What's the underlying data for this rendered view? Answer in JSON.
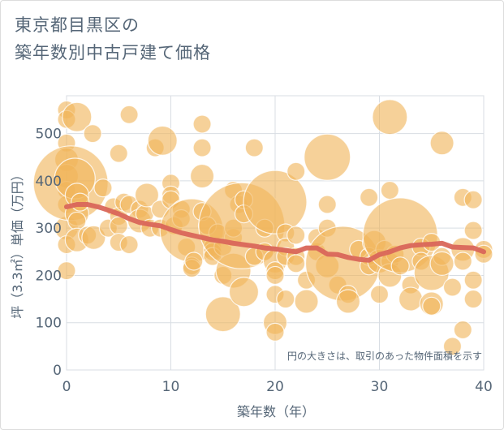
{
  "title_line1": "東京都目黒区の",
  "title_line2": "築年数別中古戸建て価格",
  "chart_data": {
    "type": "scatter",
    "xlabel": "築年数（年）",
    "ylabel": "坪（3.3㎡）単価（万円）",
    "xlim": [
      0,
      40
    ],
    "ylim": [
      0,
      580
    ],
    "xticks": [
      "0",
      "10",
      "20",
      "30",
      "40"
    ],
    "yticks": [
      "0",
      "100",
      "200",
      "300",
      "400",
      "500"
    ],
    "grid": true,
    "note": "円の大きさは、取引のあった物件面積を示す",
    "bubble_color": "#f1b55a",
    "trend_color": "#d9665a",
    "points": [
      {
        "x": 0,
        "y": 550,
        "s": 2
      },
      {
        "x": 0,
        "y": 530,
        "s": 2
      },
      {
        "x": 0,
        "y": 480,
        "s": 2
      },
      {
        "x": 0,
        "y": 445,
        "s": 3
      },
      {
        "x": 0,
        "y": 410,
        "s": 3
      },
      {
        "x": 0,
        "y": 380,
        "s": 2
      },
      {
        "x": 0,
        "y": 350,
        "s": 2
      },
      {
        "x": 0,
        "y": 300,
        "s": 3
      },
      {
        "x": 0,
        "y": 265,
        "s": 2
      },
      {
        "x": 0,
        "y": 210,
        "s": 2
      },
      {
        "x": 0.4,
        "y": 395,
        "s": 12
      },
      {
        "x": 0.8,
        "y": 405,
        "s": 6
      },
      {
        "x": 1,
        "y": 535,
        "s": 4
      },
      {
        "x": 1,
        "y": 370,
        "s": 3
      },
      {
        "x": 1,
        "y": 330,
        "s": 3
      },
      {
        "x": 1,
        "y": 315,
        "s": 2
      },
      {
        "x": 1,
        "y": 275,
        "s": 3
      },
      {
        "x": 1.3,
        "y": 355,
        "s": 2
      },
      {
        "x": 2,
        "y": 285,
        "s": 2
      },
      {
        "x": 2.5,
        "y": 500,
        "s": 2
      },
      {
        "x": 2.6,
        "y": 280,
        "s": 3
      },
      {
        "x": 3.5,
        "y": 385,
        "s": 2
      },
      {
        "x": 4,
        "y": 300,
        "s": 2
      },
      {
        "x": 4.5,
        "y": 345,
        "s": 2
      },
      {
        "x": 5,
        "y": 458,
        "s": 2
      },
      {
        "x": 5,
        "y": 325,
        "s": 2
      },
      {
        "x": 5,
        "y": 305,
        "s": 2
      },
      {
        "x": 5,
        "y": 270,
        "s": 2
      },
      {
        "x": 5.5,
        "y": 355,
        "s": 2
      },
      {
        "x": 6,
        "y": 540,
        "s": 2
      },
      {
        "x": 6,
        "y": 350,
        "s": 2
      },
      {
        "x": 6,
        "y": 265,
        "s": 2
      },
      {
        "x": 7,
        "y": 340,
        "s": 2
      },
      {
        "x": 7,
        "y": 315,
        "s": 3
      },
      {
        "x": 7.5,
        "y": 330,
        "s": 2
      },
      {
        "x": 7.7,
        "y": 370,
        "s": 3
      },
      {
        "x": 8,
        "y": 300,
        "s": 2
      },
      {
        "x": 8.5,
        "y": 470,
        "s": 2
      },
      {
        "x": 9,
        "y": 340,
        "s": 2
      },
      {
        "x": 9,
        "y": 300,
        "s": 2
      },
      {
        "x": 9.2,
        "y": 485,
        "s": 4
      },
      {
        "x": 10,
        "y": 395,
        "s": 2
      },
      {
        "x": 10,
        "y": 370,
        "s": 2
      },
      {
        "x": 10,
        "y": 360,
        "s": 2
      },
      {
        "x": 10.3,
        "y": 305,
        "s": 2
      },
      {
        "x": 11,
        "y": 340,
        "s": 2
      },
      {
        "x": 11,
        "y": 320,
        "s": 2
      },
      {
        "x": 11.5,
        "y": 260,
        "s": 2
      },
      {
        "x": 12,
        "y": 295,
        "s": 10
      },
      {
        "x": 12,
        "y": 220,
        "s": 2
      },
      {
        "x": 12,
        "y": 215,
        "s": 2
      },
      {
        "x": 12.2,
        "y": 230,
        "s": 2
      },
      {
        "x": 13,
        "y": 520,
        "s": 2
      },
      {
        "x": 13,
        "y": 470,
        "s": 2
      },
      {
        "x": 13,
        "y": 410,
        "s": 3
      },
      {
        "x": 13,
        "y": 335,
        "s": 2
      },
      {
        "x": 13.5,
        "y": 305,
        "s": 2
      },
      {
        "x": 14,
        "y": 260,
        "s": 2
      },
      {
        "x": 14,
        "y": 250,
        "s": 2
      },
      {
        "x": 14,
        "y": 240,
        "s": 2
      },
      {
        "x": 14.5,
        "y": 290,
        "s": 2
      },
      {
        "x": 15,
        "y": 118,
        "s": 5
      },
      {
        "x": 15,
        "y": 200,
        "s": 2
      },
      {
        "x": 15,
        "y": 260,
        "s": 2
      },
      {
        "x": 16,
        "y": 280,
        "s": 2
      },
      {
        "x": 16,
        "y": 300,
        "s": 2
      },
      {
        "x": 16,
        "y": 380,
        "s": 2
      },
      {
        "x": 16,
        "y": 210,
        "s": 5
      },
      {
        "x": 16.5,
        "y": 350,
        "s": 2
      },
      {
        "x": 16.8,
        "y": 305,
        "s": 14
      },
      {
        "x": 17,
        "y": 360,
        "s": 2
      },
      {
        "x": 17,
        "y": 330,
        "s": 2
      },
      {
        "x": 17,
        "y": 165,
        "s": 4
      },
      {
        "x": 18,
        "y": 470,
        "s": 2
      },
      {
        "x": 18,
        "y": 240,
        "s": 2
      },
      {
        "x": 19,
        "y": 300,
        "s": 2
      },
      {
        "x": 19,
        "y": 250,
        "s": 2
      },
      {
        "x": 20,
        "y": 355,
        "s": 10
      },
      {
        "x": 20,
        "y": 230,
        "s": 3
      },
      {
        "x": 20,
        "y": 210,
        "s": 2
      },
      {
        "x": 20,
        "y": 200,
        "s": 2
      },
      {
        "x": 20,
        "y": 160,
        "s": 2
      },
      {
        "x": 20,
        "y": 100,
        "s": 3
      },
      {
        "x": 20,
        "y": 80,
        "s": 2
      },
      {
        "x": 21,
        "y": 290,
        "s": 2
      },
      {
        "x": 21,
        "y": 260,
        "s": 2
      },
      {
        "x": 21,
        "y": 240,
        "s": 2
      },
      {
        "x": 21,
        "y": 150,
        "s": 2
      },
      {
        "x": 22,
        "y": 420,
        "s": 2
      },
      {
        "x": 22,
        "y": 240,
        "s": 2
      },
      {
        "x": 22,
        "y": 225,
        "s": 2
      },
      {
        "x": 22,
        "y": 285,
        "s": 2
      },
      {
        "x": 23,
        "y": 190,
        "s": 2
      },
      {
        "x": 23,
        "y": 145,
        "s": 3
      },
      {
        "x": 24,
        "y": 250,
        "s": 2
      },
      {
        "x": 24,
        "y": 280,
        "s": 2
      },
      {
        "x": 25,
        "y": 450,
        "s": 7
      },
      {
        "x": 25,
        "y": 350,
        "s": 2
      },
      {
        "x": 25,
        "y": 300,
        "s": 2
      },
      {
        "x": 25,
        "y": 220,
        "s": 3
      },
      {
        "x": 26,
        "y": 180,
        "s": 2
      },
      {
        "x": 26.5,
        "y": 225,
        "s": 12
      },
      {
        "x": 27,
        "y": 160,
        "s": 2
      },
      {
        "x": 27,
        "y": 145,
        "s": 3
      },
      {
        "x": 28,
        "y": 255,
        "s": 2
      },
      {
        "x": 29,
        "y": 365,
        "s": 2
      },
      {
        "x": 29,
        "y": 240,
        "s": 2
      },
      {
        "x": 29,
        "y": 220,
        "s": 2
      },
      {
        "x": 29.5,
        "y": 270,
        "s": 3
      },
      {
        "x": 30,
        "y": 230,
        "s": 3
      },
      {
        "x": 30,
        "y": 160,
        "s": 2
      },
      {
        "x": 30.5,
        "y": 255,
        "s": 2
      },
      {
        "x": 31,
        "y": 535,
        "s": 5
      },
      {
        "x": 31,
        "y": 380,
        "s": 2
      },
      {
        "x": 31,
        "y": 230,
        "s": 2
      },
      {
        "x": 31,
        "y": 200,
        "s": 3
      },
      {
        "x": 31.5,
        "y": 245,
        "s": 2
      },
      {
        "x": 32,
        "y": 285,
        "s": 12
      },
      {
        "x": 32,
        "y": 220,
        "s": 2
      },
      {
        "x": 33,
        "y": 180,
        "s": 2
      },
      {
        "x": 33,
        "y": 150,
        "s": 3
      },
      {
        "x": 34,
        "y": 260,
        "s": 2
      },
      {
        "x": 34,
        "y": 230,
        "s": 2
      },
      {
        "x": 35,
        "y": 270,
        "s": 2
      },
      {
        "x": 35,
        "y": 205,
        "s": 5
      },
      {
        "x": 35,
        "y": 140,
        "s": 3
      },
      {
        "x": 35,
        "y": 135,
        "s": 2
      },
      {
        "x": 36,
        "y": 480,
        "s": 3
      },
      {
        "x": 36,
        "y": 240,
        "s": 2
      },
      {
        "x": 36,
        "y": 225,
        "s": 3
      },
      {
        "x": 37,
        "y": 50,
        "s": 2
      },
      {
        "x": 37,
        "y": 175,
        "s": 2
      },
      {
        "x": 38,
        "y": 365,
        "s": 2
      },
      {
        "x": 38,
        "y": 255,
        "s": 3
      },
      {
        "x": 38,
        "y": 230,
        "s": 2
      },
      {
        "x": 38,
        "y": 85,
        "s": 2
      },
      {
        "x": 39,
        "y": 360,
        "s": 2
      },
      {
        "x": 39,
        "y": 295,
        "s": 2
      },
      {
        "x": 39,
        "y": 190,
        "s": 2
      },
      {
        "x": 39,
        "y": 150,
        "s": 2
      },
      {
        "x": 40,
        "y": 255,
        "s": 2
      },
      {
        "x": 40,
        "y": 245,
        "s": 2
      }
    ],
    "trend": [
      {
        "x": 0,
        "y": 345
      },
      {
        "x": 1,
        "y": 350
      },
      {
        "x": 2,
        "y": 350
      },
      {
        "x": 3,
        "y": 345
      },
      {
        "x": 4,
        "y": 338
      },
      {
        "x": 5,
        "y": 330
      },
      {
        "x": 6,
        "y": 320
      },
      {
        "x": 7,
        "y": 312
      },
      {
        "x": 8,
        "y": 308
      },
      {
        "x": 9,
        "y": 305
      },
      {
        "x": 10,
        "y": 297
      },
      {
        "x": 11,
        "y": 290
      },
      {
        "x": 12,
        "y": 285
      },
      {
        "x": 13,
        "y": 280
      },
      {
        "x": 14,
        "y": 275
      },
      {
        "x": 15,
        "y": 272
      },
      {
        "x": 16,
        "y": 268
      },
      {
        "x": 17,
        "y": 265
      },
      {
        "x": 18,
        "y": 262
      },
      {
        "x": 19,
        "y": 258
      },
      {
        "x": 20,
        "y": 256
      },
      {
        "x": 21,
        "y": 253
      },
      {
        "x": 22,
        "y": 250
      },
      {
        "x": 23,
        "y": 258
      },
      {
        "x": 24,
        "y": 258
      },
      {
        "x": 25,
        "y": 245
      },
      {
        "x": 26,
        "y": 244
      },
      {
        "x": 27,
        "y": 238
      },
      {
        "x": 28,
        "y": 234
      },
      {
        "x": 29,
        "y": 232
      },
      {
        "x": 30,
        "y": 244
      },
      {
        "x": 31,
        "y": 250
      },
      {
        "x": 32,
        "y": 258
      },
      {
        "x": 33,
        "y": 263
      },
      {
        "x": 34,
        "y": 265
      },
      {
        "x": 35,
        "y": 266
      },
      {
        "x": 36,
        "y": 268
      },
      {
        "x": 37,
        "y": 260
      },
      {
        "x": 38,
        "y": 259
      },
      {
        "x": 39,
        "y": 258
      },
      {
        "x": 40,
        "y": 250
      }
    ]
  }
}
